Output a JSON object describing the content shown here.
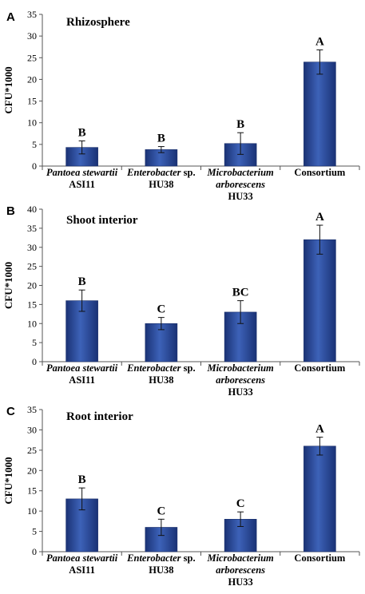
{
  "chart_data": [
    {
      "type": "bar",
      "panel_label": "A",
      "title": "Rhizosphere",
      "ylabel": "CFU*1000",
      "xlabel": "",
      "ylim": [
        0,
        35
      ],
      "ytick_step": 5,
      "grid": false,
      "categories": [
        {
          "lines": [
            {
              "text": "Pantoea stewartii",
              "italic": true
            },
            {
              "text": "ASI11",
              "italic": false
            }
          ]
        },
        {
          "lines": [
            {
              "italic_part": "Enterobacter",
              "plain_part": " sp."
            },
            {
              "text": "HU38",
              "italic": false
            }
          ]
        },
        {
          "lines": [
            {
              "text": "Microbacterium",
              "italic": true
            },
            {
              "text": "arborescens",
              "italic": true
            },
            {
              "text": "HU33",
              "italic": false
            }
          ]
        },
        {
          "lines": [
            {
              "text": "Consortium",
              "italic": false
            }
          ]
        }
      ],
      "values": [
        4.3,
        3.8,
        5.2,
        24.0
      ],
      "errors": [
        1.5,
        0.7,
        2.5,
        2.8
      ],
      "significance": [
        "B",
        "B",
        "B",
        "A"
      ],
      "bar_color": "#2a4a9c"
    },
    {
      "type": "bar",
      "panel_label": "B",
      "title": "Shoot interior",
      "ylabel": "CFU*1000",
      "xlabel": "",
      "ylim": [
        0,
        40
      ],
      "ytick_step": 5,
      "grid": false,
      "categories": [
        {
          "lines": [
            {
              "text": "Pantoea stewartii",
              "italic": true
            },
            {
              "text": "ASI11",
              "italic": false
            }
          ]
        },
        {
          "lines": [
            {
              "italic_part": "Enterobacter",
              "plain_part": " sp."
            },
            {
              "text": "HU38",
              "italic": false
            }
          ]
        },
        {
          "lines": [
            {
              "text": "Microbacterium",
              "italic": true
            },
            {
              "text": "arborescens",
              "italic": true
            },
            {
              "text": "HU33",
              "italic": false
            }
          ]
        },
        {
          "lines": [
            {
              "text": "Consortium",
              "italic": false
            }
          ]
        }
      ],
      "values": [
        16.0,
        10.0,
        13.0,
        32.0
      ],
      "errors": [
        2.8,
        1.6,
        3.0,
        3.8
      ],
      "significance": [
        "B",
        "C",
        "BC",
        "A"
      ],
      "bar_color": "#2a4a9c"
    },
    {
      "type": "bar",
      "panel_label": "C",
      "title": "Root interior",
      "ylabel": "CFU*1000",
      "xlabel": "",
      "ylim": [
        0,
        35
      ],
      "ytick_step": 5,
      "grid": false,
      "categories": [
        {
          "lines": [
            {
              "text": "Pantoea stewartii",
              "italic": true
            },
            {
              "text": "ASI11",
              "italic": false
            }
          ]
        },
        {
          "lines": [
            {
              "italic_part": "Enterobacter",
              "plain_part": " sp."
            },
            {
              "text": "HU38",
              "italic": false
            }
          ]
        },
        {
          "lines": [
            {
              "text": "Microbacterium",
              "italic": true
            },
            {
              "text": "arborescens",
              "italic": true
            },
            {
              "text": "HU33",
              "italic": false
            }
          ]
        },
        {
          "lines": [
            {
              "text": "Consortium",
              "italic": false
            }
          ]
        }
      ],
      "values": [
        13.0,
        6.0,
        8.0,
        26.0
      ],
      "errors": [
        2.7,
        2.0,
        1.8,
        2.2
      ],
      "significance": [
        "B",
        "C",
        "C",
        "A"
      ],
      "bar_color": "#2a4a9c"
    }
  ]
}
